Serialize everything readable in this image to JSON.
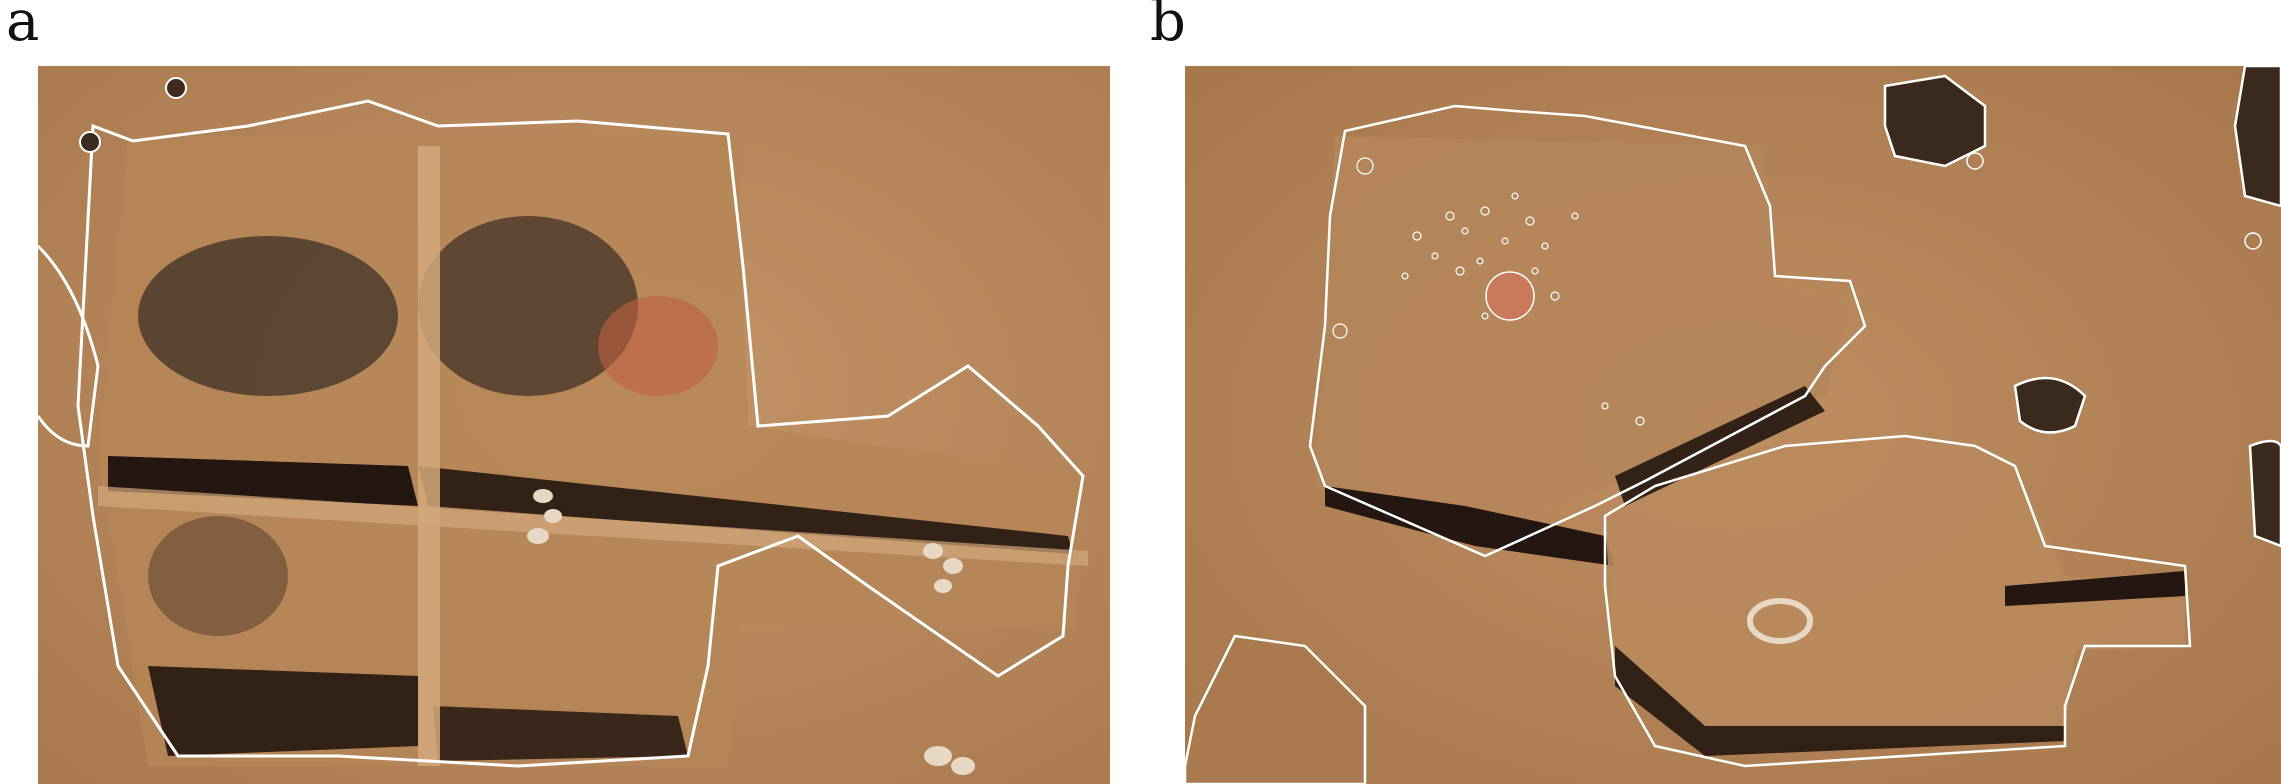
{
  "panels": [
    {
      "label": "a"
    },
    {
      "label": "b"
    }
  ],
  "colors": {
    "soil": "#b98a5c",
    "soil_light": "#c89a6b",
    "soil_dark": "#9c6e44",
    "shadow": "#2a1a10",
    "outline": "#ffffff",
    "ash": "#4a3a30",
    "burnt": "#c06040"
  }
}
